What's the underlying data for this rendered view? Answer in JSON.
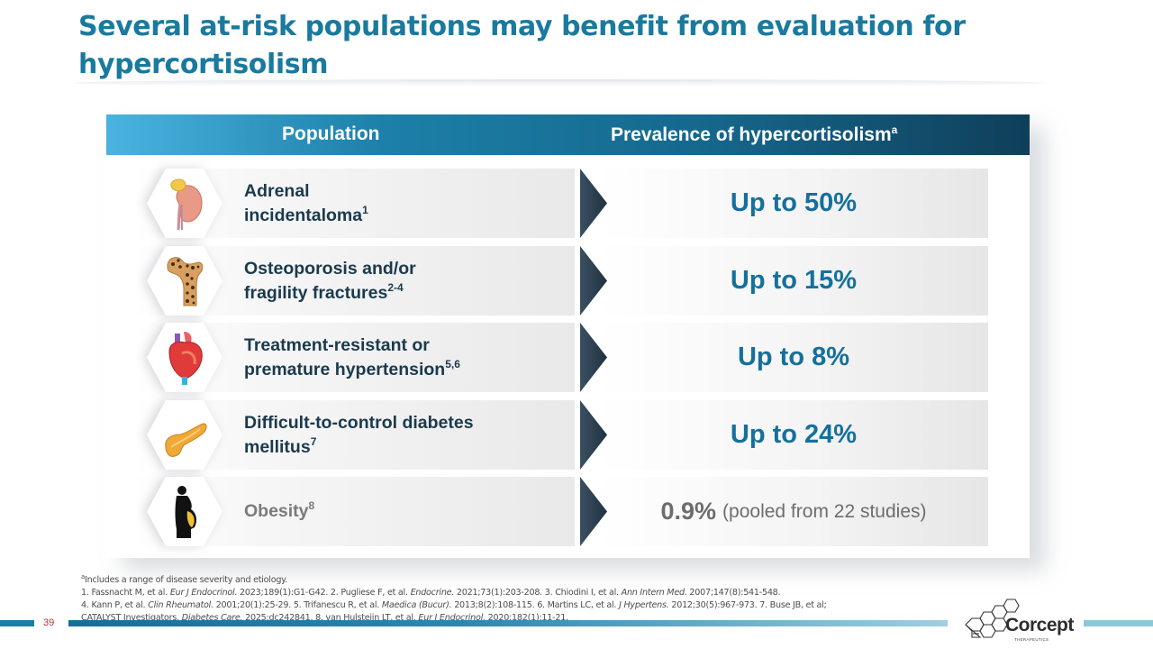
{
  "slide": {
    "title": "Several at-risk populations may benefit from evaluation for hypercortisolism",
    "page_number": "39"
  },
  "table": {
    "header": {
      "population": "Population",
      "prevalence": "Prevalence of hypercortisolism",
      "prevalence_sup": "a"
    },
    "rows": [
      {
        "icon": "kidney-adrenal-icon",
        "label_line1": "Adrenal",
        "label_line2": "incidentaloma",
        "sup": "1",
        "prevalence": "Up to 50%",
        "note": ""
      },
      {
        "icon": "femur-bone-icon",
        "label_line1": "Osteoporosis and/or",
        "label_line2": "fragility fractures",
        "sup": "2-4",
        "prevalence": "Up to 15%",
        "note": ""
      },
      {
        "icon": "heart-icon",
        "label_line1": "Treatment-resistant or",
        "label_line2": "premature hypertension",
        "sup": "5,6",
        "prevalence": "Up to 8%",
        "note": ""
      },
      {
        "icon": "pancreas-icon",
        "label_line1": "Difficult-to-control diabetes",
        "label_line2": "mellitus",
        "sup": "7",
        "prevalence": "Up to 24%",
        "note": ""
      },
      {
        "icon": "obese-person-icon",
        "label_line1": "Obesity",
        "label_line2": "",
        "sup": "8",
        "prevalence": "0.9%",
        "note": "(pooled from 22 studies)"
      }
    ]
  },
  "footnotes": {
    "a_marker": "a",
    "a_text": "Includes a range of disease severity and etiology.",
    "line1": [
      {
        "t": "1. Fassnacht M, et al. "
      },
      {
        "t": "Eur J Endocrinol.",
        "i": true
      },
      {
        "t": " 2023;189(1):G1-G42. 2. Pugliese F, et al. "
      },
      {
        "t": "Endocrine.",
        "i": true
      },
      {
        "t": " 2021;73(1):203-208. 3. Chiodini I, et al. "
      },
      {
        "t": "Ann Intern Med.",
        "i": true
      },
      {
        "t": " 2007;147(8):541-548."
      }
    ],
    "line2": [
      {
        "t": "4. Kann P, et al. "
      },
      {
        "t": "Clin Rheumatol.",
        "i": true
      },
      {
        "t": " 2001;20(1):25-29. 5. Trifanescu R, et al. "
      },
      {
        "t": "Maedica (Bucur).",
        "i": true
      },
      {
        "t": " 2013;8(2):108-115. 6. Martins LC, et al. "
      },
      {
        "t": "J Hypertens.",
        "i": true
      },
      {
        "t": " 2012;30(5):967-973. 7. Buse JB, et al;"
      }
    ],
    "line3": [
      {
        "t": "CATALYST Investigators. "
      },
      {
        "t": "Diabetes Care.",
        "i": true
      },
      {
        "t": " 2025:dc242841. 8. van Hulsteijn LT, et al. "
      },
      {
        "t": "Eur J Endocrinol.",
        "i": true
      },
      {
        "t": " 2020;182(1):11-21."
      }
    ]
  },
  "logo": {
    "name": "Corcept",
    "sub": "THERAPEUTICS"
  },
  "colors": {
    "title": "#1a7a9e",
    "prevalence_text": "#15709b",
    "label_text": "#1a3a4d",
    "arrow": "#2e4354",
    "header_start": "#4ab3e0",
    "header_end": "#0f3f5a"
  }
}
